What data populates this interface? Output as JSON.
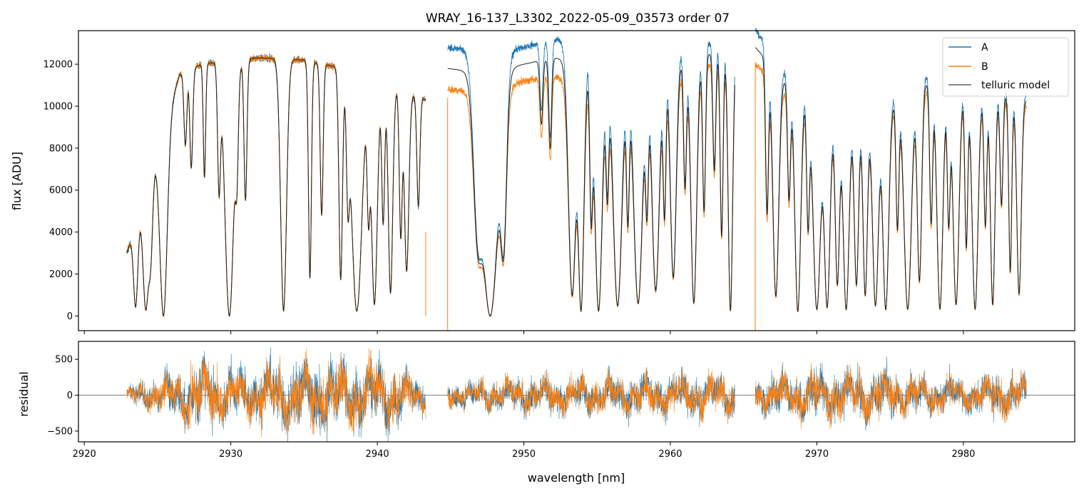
{
  "chart_data": [
    {
      "panel": "top",
      "type": "line",
      "title": "WRAY_16-137_L3302_2022-05-09_03573  order 07",
      "ylabel": "flux [ADU]",
      "xlim": [
        2919.6,
        2987.6
      ],
      "ylim": [
        -700,
        13600
      ],
      "yticks": [
        0,
        2000,
        4000,
        6000,
        8000,
        10000,
        12000
      ],
      "ytick_labels": [
        "0",
        "2000",
        "4000",
        "6000",
        "8000",
        "10000",
        "12000"
      ],
      "legend": {
        "placement": "top-right",
        "entries": [
          "A",
          "B",
          "telluric model"
        ]
      },
      "segments": [
        {
          "x_start": 2922.9,
          "x_end": 2943.3
        },
        {
          "x_start": 2944.8,
          "x_end": 2964.4
        },
        {
          "x_start": 2965.8,
          "x_end": 2984.3
        }
      ],
      "continuum": {
        "x": [
          2922.9,
          2925.0,
          2926.5,
          2928.0,
          2930.0,
          2932.0,
          2935.0,
          2937.0,
          2940.0,
          2943.3,
          2944.8,
          2947.0,
          2950.0,
          2952.0,
          2955.0,
          2958.0,
          2961.0,
          2964.4,
          2965.8,
          2968.0,
          2971.0,
          2974.0,
          2977.0,
          2980.0,
          2984.3
        ],
        "A": [
          3000,
          8000,
          11500,
          12000,
          12200,
          12300,
          12200,
          11900,
          11200,
          10300,
          12800,
          12600,
          12800,
          13200,
          12900,
          12700,
          12800,
          13300,
          13600,
          11600,
          10400,
          10100,
          11500,
          11200,
          10600
        ],
        "B": [
          3000,
          8000,
          11500,
          12000,
          12200,
          12300,
          12200,
          11900,
          11200,
          10300,
          10800,
          10700,
          11200,
          11400,
          11200,
          11400,
          11600,
          12400,
          12000,
          10600,
          9700,
          9400,
          10700,
          10600,
          10000
        ],
        "telluric model": [
          3000,
          8000,
          11500,
          12000,
          12200,
          12300,
          12200,
          11900,
          11200,
          10300,
          11800,
          11600,
          12000,
          12300,
          12000,
          12000,
          12200,
          12800,
          12800,
          11100,
          10000,
          9700,
          11100,
          10900,
          10300
        ]
      },
      "absorption_lines": [
        [
          2923.5,
          0.9,
          0.15
        ],
        [
          2924.2,
          0.95,
          0.2
        ],
        [
          2924.5,
          0.6,
          0.15
        ],
        [
          2925.4,
          1.0,
          0.25
        ],
        [
          2926.9,
          0.3,
          0.1
        ],
        [
          2927.3,
          0.4,
          0.1
        ],
        [
          2928.2,
          0.45,
          0.08
        ],
        [
          2929.2,
          0.5,
          0.1
        ],
        [
          2929.9,
          1.0,
          0.3
        ],
        [
          2930.4,
          0.4,
          0.1
        ],
        [
          2931.0,
          0.55,
          0.1
        ],
        [
          2933.6,
          0.98,
          0.2
        ],
        [
          2935.4,
          0.85,
          0.1
        ],
        [
          2936.2,
          0.6,
          0.1
        ],
        [
          2937.5,
          0.85,
          0.12
        ],
        [
          2938.0,
          0.5,
          0.1
        ],
        [
          2938.6,
          0.98,
          0.35
        ],
        [
          2939.4,
          0.55,
          0.1
        ],
        [
          2939.8,
          0.95,
          0.2
        ],
        [
          2940.4,
          0.6,
          0.1
        ],
        [
          2940.9,
          0.9,
          0.15
        ],
        [
          2941.6,
          0.65,
          0.1
        ],
        [
          2942.0,
          0.8,
          0.15
        ],
        [
          2942.8,
          0.5,
          0.1
        ],
        [
          2946.9,
          0.65,
          0.3
        ],
        [
          2947.7,
          1.0,
          0.55
        ],
        [
          2948.6,
          0.7,
          0.2
        ],
        [
          2951.2,
          0.25,
          0.1
        ],
        [
          2951.8,
          0.35,
          0.1
        ],
        [
          2953.3,
          0.92,
          0.25
        ],
        [
          2953.9,
          0.98,
          0.2
        ],
        [
          2954.6,
          0.6,
          0.1
        ],
        [
          2955.1,
          0.98,
          0.25
        ],
        [
          2955.7,
          0.5,
          0.1
        ],
        [
          2956.4,
          0.96,
          0.3
        ],
        [
          2957.1,
          0.6,
          0.1
        ],
        [
          2957.8,
          0.95,
          0.3
        ],
        [
          2958.4,
          0.55,
          0.1
        ],
        [
          2959.0,
          0.9,
          0.25
        ],
        [
          2959.6,
          0.6,
          0.1
        ],
        [
          2960.2,
          0.85,
          0.2
        ],
        [
          2961.0,
          0.5,
          0.1
        ],
        [
          2961.6,
          0.95,
          0.2
        ],
        [
          2962.3,
          0.6,
          0.1
        ],
        [
          2963.0,
          0.45,
          0.1
        ],
        [
          2963.5,
          0.7,
          0.1
        ],
        [
          2964.1,
          0.98,
          0.15
        ],
        [
          2966.6,
          0.6,
          0.1
        ],
        [
          2967.2,
          0.92,
          0.2
        ],
        [
          2968.1,
          0.5,
          0.1
        ],
        [
          2968.7,
          0.98,
          0.2
        ],
        [
          2969.4,
          0.6,
          0.1
        ],
        [
          2970.0,
          0.97,
          0.25
        ],
        [
          2970.7,
          0.96,
          0.2
        ],
        [
          2971.4,
          0.85,
          0.15
        ],
        [
          2972.0,
          0.97,
          0.2
        ],
        [
          2972.7,
          0.85,
          0.15
        ],
        [
          2973.3,
          0.9,
          0.15
        ],
        [
          2974.0,
          0.95,
          0.2
        ],
        [
          2974.7,
          0.97,
          0.2
        ],
        [
          2975.5,
          0.6,
          0.1
        ],
        [
          2976.2,
          0.97,
          0.25
        ],
        [
          2977.0,
          0.85,
          0.15
        ],
        [
          2977.8,
          0.6,
          0.1
        ],
        [
          2978.4,
          0.97,
          0.2
        ],
        [
          2979.0,
          0.6,
          0.1
        ],
        [
          2979.5,
          0.95,
          0.2
        ],
        [
          2980.2,
          0.7,
          0.1
        ],
        [
          2980.8,
          0.97,
          0.2
        ],
        [
          2981.5,
          0.6,
          0.1
        ],
        [
          2982.0,
          0.95,
          0.15
        ],
        [
          2982.6,
          0.5,
          0.1
        ],
        [
          2983.2,
          0.8,
          0.1
        ],
        [
          2983.8,
          0.9,
          0.15
        ]
      ],
      "vertical_spikes": [
        {
          "x": 2943.3,
          "y_from": 4000,
          "y_to": 0
        },
        {
          "x": 2944.8,
          "y_from": -700,
          "y_to": 10400
        },
        {
          "x": 2965.8,
          "y_from": -700,
          "y_to": 12100
        }
      ]
    },
    {
      "panel": "bottom",
      "type": "line",
      "xlabel": "wavelength [nm]",
      "ylabel": "residual",
      "xlim": [
        2919.6,
        2987.6
      ],
      "ylim": [
        -650,
        750
      ],
      "yticks": [
        -500,
        0,
        500
      ],
      "ytick_labels": [
        "−500",
        "0",
        "500"
      ],
      "xticks": [
        2920,
        2930,
        2940,
        2950,
        2960,
        2970,
        2980
      ],
      "xtick_labels": [
        "2920",
        "2930",
        "2940",
        "2950",
        "2960",
        "2970",
        "2980"
      ],
      "series_names": [
        "A",
        "B"
      ],
      "noise_envelope": {
        "x": [
          2922.9,
          2926.0,
          2928.0,
          2931.0,
          2934.0,
          2936.0,
          2938.0,
          2940.0,
          2943.3,
          2944.8,
          2950.0,
          2955.0,
          2960.0,
          2964.4,
          2965.8,
          2970.0,
          2974.0,
          2978.0,
          2984.3
        ],
        "amplitude": [
          100,
          280,
          420,
          300,
          420,
          450,
          380,
          450,
          200,
          150,
          220,
          230,
          260,
          280,
          200,
          320,
          300,
          220,
          260
        ]
      },
      "zero_line": 0
    }
  ],
  "colors": {
    "A": "#1f77b4",
    "B": "#ff7f0e",
    "telluric model": "#333333",
    "zero_line": "#555555"
  }
}
